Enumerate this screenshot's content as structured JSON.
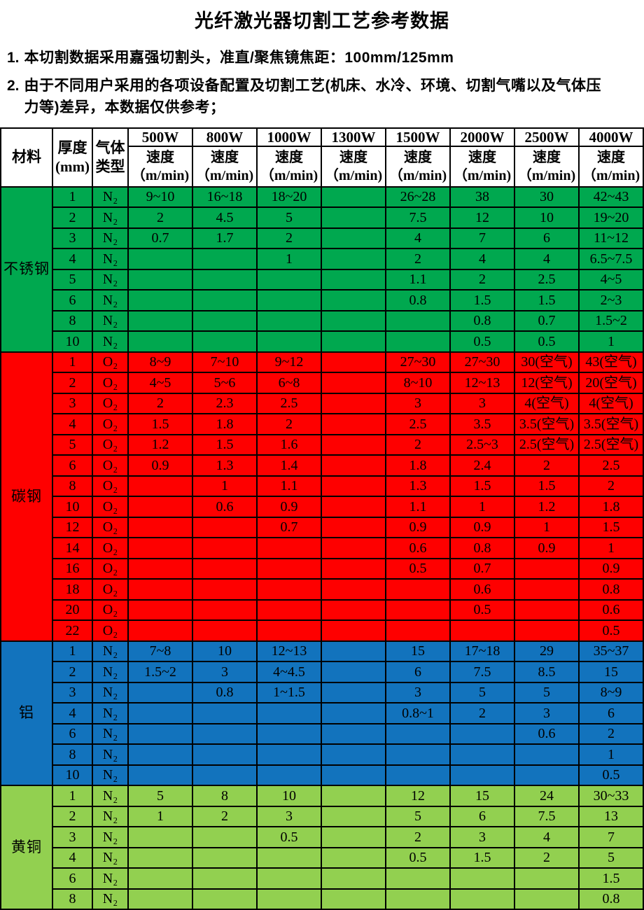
{
  "title": "光纤激光器切割工艺参考数据",
  "notes": [
    {
      "num": "1.",
      "text": "本切割数据采用嘉强切割头，准直/聚焦镜焦距：100mm/125mm"
    },
    {
      "num": "2.",
      "text": "由于不同用户采用的各项设备配置及切割工艺(机床、水冷、环境、切割气嘴以及气体压\n力等)差异，本数据仅供参考；"
    }
  ],
  "table": {
    "header": {
      "material": "材料",
      "thickness": "厚度\n(mm)",
      "gas": "气体\n类型",
      "powers": [
        "500W",
        "800W",
        "1000W",
        "1300W",
        "1500W",
        "2000W",
        "2500W",
        "4000W"
      ],
      "speed": "速度\n（m/min)"
    },
    "sections": [
      {
        "material": "不锈钢",
        "color": "#00a84f",
        "rows": [
          {
            "thickness": "1",
            "gas": "N₂",
            "speeds": [
              "9~10",
              "16~18",
              "18~20",
              "",
              "26~28",
              "38",
              "30",
              "42~43"
            ]
          },
          {
            "thickness": "2",
            "gas": "N₂",
            "speeds": [
              "2",
              "4.5",
              "5",
              "",
              "7.5",
              "12",
              "10",
              "19~20"
            ]
          },
          {
            "thickness": "3",
            "gas": "N₂",
            "speeds": [
              "0.7",
              "1.7",
              "2",
              "",
              "4",
              "7",
              "6",
              "11~12"
            ]
          },
          {
            "thickness": "4",
            "gas": "N₂",
            "speeds": [
              "",
              "",
              "1",
              "",
              "2",
              "4",
              "4",
              "6.5~7.5"
            ]
          },
          {
            "thickness": "5",
            "gas": "N₂",
            "speeds": [
              "",
              "",
              "",
              "",
              "1.1",
              "2",
              "2.5",
              "4~5"
            ]
          },
          {
            "thickness": "6",
            "gas": "N₂",
            "speeds": [
              "",
              "",
              "",
              "",
              "0.8",
              "1.5",
              "1.5",
              "2~3"
            ]
          },
          {
            "thickness": "8",
            "gas": "N₂",
            "speeds": [
              "",
              "",
              "",
              "",
              "",
              "0.8",
              "0.7",
              "1.5~2"
            ]
          },
          {
            "thickness": "10",
            "gas": "N₂",
            "speeds": [
              "",
              "",
              "",
              "",
              "",
              "0.5",
              "0.5",
              "1"
            ]
          }
        ]
      },
      {
        "material": "碳钢",
        "color": "#fe0000",
        "rows": [
          {
            "thickness": "1",
            "gas": "O₂",
            "speeds": [
              "8~9",
              "7~10",
              "9~12",
              "",
              "27~30",
              "27~30",
              "30(空气)",
              "43(空气)"
            ]
          },
          {
            "thickness": "2",
            "gas": "O₂",
            "speeds": [
              "4~5",
              "5~6",
              "6~8",
              "",
              "8~10",
              "12~13",
              "12(空气)",
              "20(空气)"
            ]
          },
          {
            "thickness": "3",
            "gas": "O₂",
            "speeds": [
              "2",
              "2.3",
              "2.5",
              "",
              "3",
              "3",
              "4(空气)",
              "4(空气)"
            ]
          },
          {
            "thickness": "4",
            "gas": "O₂",
            "speeds": [
              "1.5",
              "1.8",
              "2",
              "",
              "2.5",
              "3.5",
              "3.5(空气)",
              "3.5(空气)"
            ]
          },
          {
            "thickness": "5",
            "gas": "O₂",
            "speeds": [
              "1.2",
              "1.5",
              "1.6",
              "",
              "2",
              "2.5~3",
              "2.5(空气)",
              "2.5(空气)"
            ]
          },
          {
            "thickness": "6",
            "gas": "O₂",
            "speeds": [
              "0.9",
              "1.3",
              "1.4",
              "",
              "1.8",
              "2.4",
              "2",
              "2.5"
            ]
          },
          {
            "thickness": "8",
            "gas": "O₂",
            "speeds": [
              "",
              "1",
              "1.1",
              "",
              "1.3",
              "1.5",
              "1.5",
              "2"
            ]
          },
          {
            "thickness": "10",
            "gas": "O₂",
            "speeds": [
              "",
              "0.6",
              "0.9",
              "",
              "1.1",
              "1",
              "1.2",
              "1.8"
            ]
          },
          {
            "thickness": "12",
            "gas": "O₂",
            "speeds": [
              "",
              "",
              "0.7",
              "",
              "0.9",
              "0.9",
              "1",
              "1.5"
            ]
          },
          {
            "thickness": "14",
            "gas": "O₂",
            "speeds": [
              "",
              "",
              "",
              "",
              "0.6",
              "0.8",
              "0.9",
              "1"
            ]
          },
          {
            "thickness": "16",
            "gas": "O₂",
            "speeds": [
              "",
              "",
              "",
              "",
              "0.5",
              "0.7",
              "",
              "0.9"
            ]
          },
          {
            "thickness": "18",
            "gas": "O₂",
            "speeds": [
              "",
              "",
              "",
              "",
              "",
              "0.6",
              "",
              "0.8"
            ]
          },
          {
            "thickness": "20",
            "gas": "O₂",
            "speeds": [
              "",
              "",
              "",
              "",
              "",
              "0.5",
              "",
              "0.6"
            ]
          },
          {
            "thickness": "22",
            "gas": "O₂",
            "speeds": [
              "",
              "",
              "",
              "",
              "",
              "",
              "",
              "0.5"
            ]
          }
        ]
      },
      {
        "material": "铝",
        "color": "#1273bd",
        "rows": [
          {
            "thickness": "1",
            "gas": "N₂",
            "speeds": [
              "7~8",
              "10",
              "12~13",
              "",
              "15",
              "17~18",
              "29",
              "35~37"
            ]
          },
          {
            "thickness": "2",
            "gas": "N₂",
            "speeds": [
              "1.5~2",
              "3",
              "4~4.5",
              "",
              "6",
              "7.5",
              "8.5",
              "15"
            ]
          },
          {
            "thickness": "3",
            "gas": "N₂",
            "speeds": [
              "",
              "0.8",
              "1~1.5",
              "",
              "3",
              "5",
              "5",
              "8~9"
            ]
          },
          {
            "thickness": "4",
            "gas": "N₂",
            "speeds": [
              "",
              "",
              "",
              "",
              "0.8~1",
              "2",
              "3",
              "6"
            ]
          },
          {
            "thickness": "6",
            "gas": "N₂",
            "speeds": [
              "",
              "",
              "",
              "",
              "",
              "",
              "0.6",
              "2"
            ]
          },
          {
            "thickness": "8",
            "gas": "N₂",
            "speeds": [
              "",
              "",
              "",
              "",
              "",
              "",
              "",
              "1"
            ]
          },
          {
            "thickness": "10",
            "gas": "N₂",
            "speeds": [
              "",
              "",
              "",
              "",
              "",
              "",
              "",
              "0.5"
            ]
          }
        ]
      },
      {
        "material": "黄铜",
        "color": "#92d050",
        "rows": [
          {
            "thickness": "1",
            "gas": "N₂",
            "speeds": [
              "5",
              "8",
              "10",
              "",
              "12",
              "15",
              "24",
              "30~33"
            ]
          },
          {
            "thickness": "2",
            "gas": "N₂",
            "speeds": [
              "1",
              "2",
              "3",
              "",
              "5",
              "6",
              "7.5",
              "13"
            ]
          },
          {
            "thickness": "3",
            "gas": "N₂",
            "speeds": [
              "",
              "",
              "0.5",
              "",
              "2",
              "3",
              "4",
              "7"
            ]
          },
          {
            "thickness": "4",
            "gas": "N₂",
            "speeds": [
              "",
              "",
              "",
              "",
              "0.5",
              "1.5",
              "2",
              "5"
            ]
          },
          {
            "thickness": "6",
            "gas": "N₂",
            "speeds": [
              "",
              "",
              "",
              "",
              "",
              "",
              "",
              "1.5"
            ]
          },
          {
            "thickness": "8",
            "gas": "N₂",
            "speeds": [
              "",
              "",
              "",
              "",
              "",
              "",
              "",
              "0.8"
            ]
          }
        ]
      }
    ]
  }
}
